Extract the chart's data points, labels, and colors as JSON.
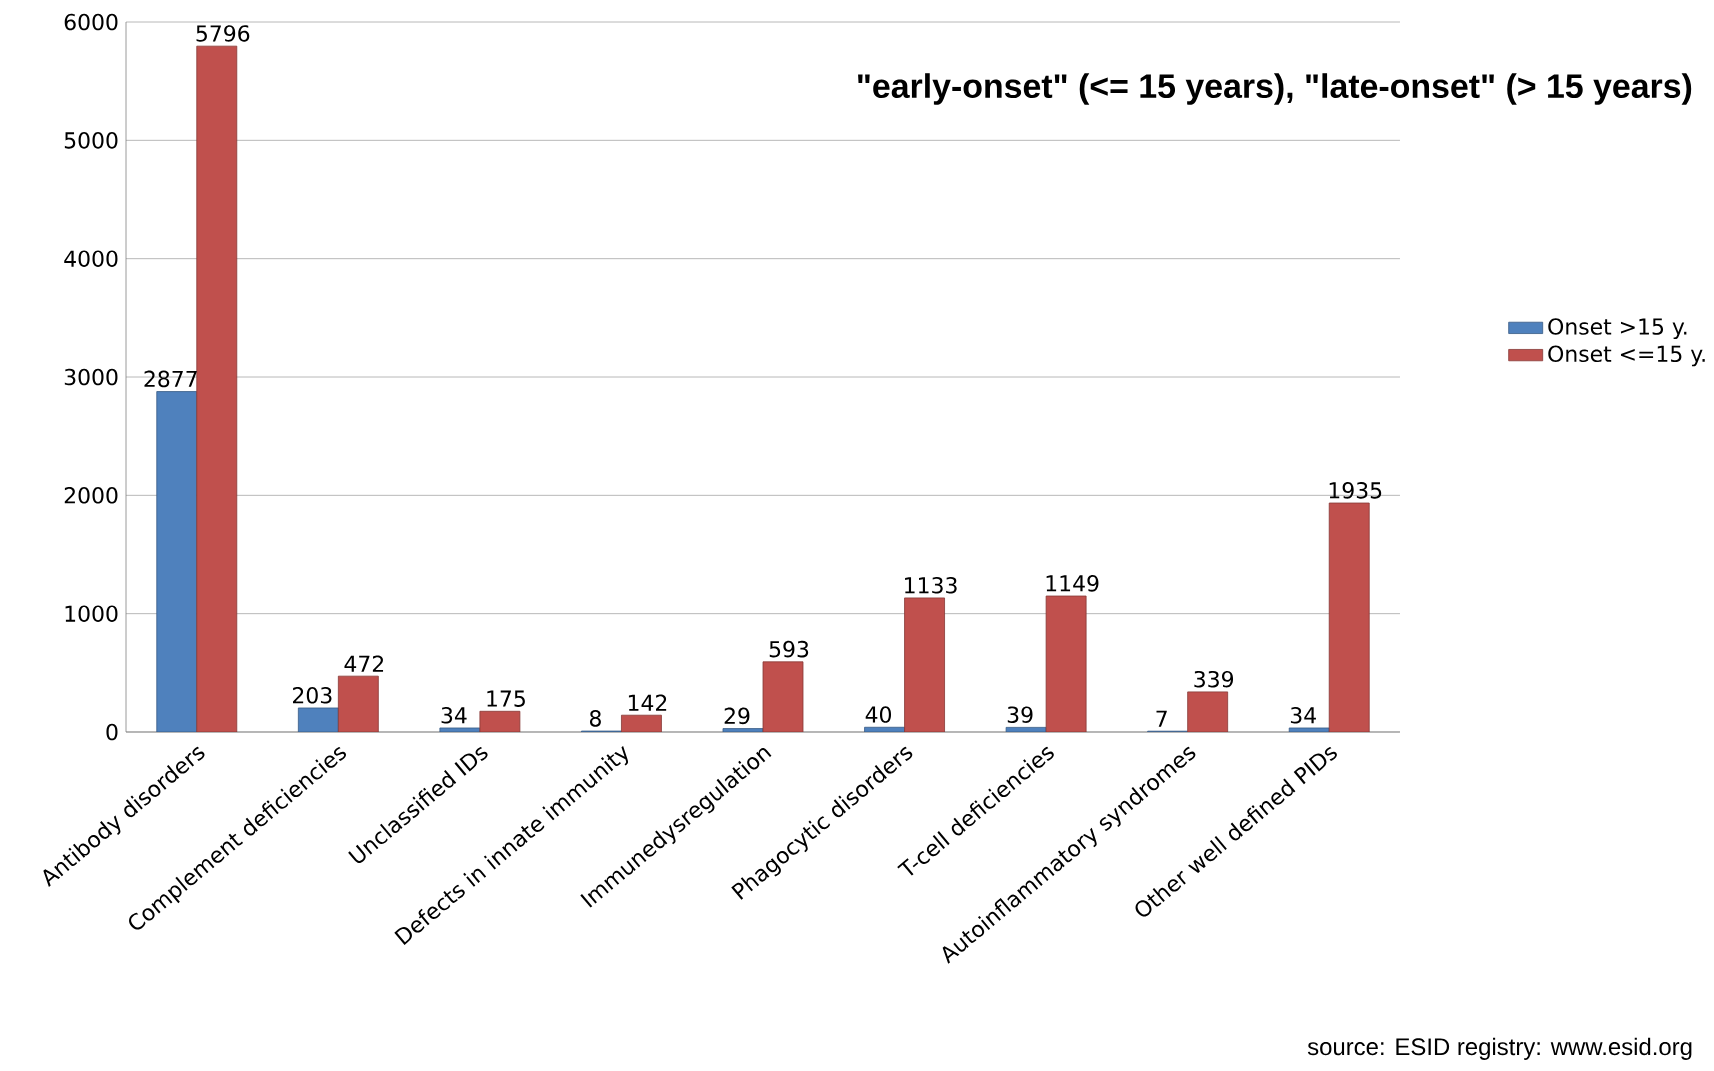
{
  "chart_data": {
    "type": "bar",
    "title": "\"early-onset\" (<= 15 years), \"late-onset\"  (> 15 years)",
    "categories": [
      "Antibody disorders",
      "Complement deficiencies",
      "Unclassified IDs",
      "Defects in innate immunity",
      "Immunedysregulation",
      "Phagocytic disorders",
      "T-cell deficiencies",
      "Autoinflammatory syndromes",
      "Other well defined PIDs"
    ],
    "series": [
      {
        "name": "Onset >15 y.",
        "color": "#4f81bd",
        "values": [
          2877,
          203,
          34,
          8,
          29,
          40,
          39,
          7,
          34
        ]
      },
      {
        "name": "Onset <=15 y.",
        "color": "#c0504d",
        "values": [
          5796,
          472,
          175,
          142,
          593,
          1133,
          1149,
          339,
          1935
        ]
      }
    ],
    "ylim": [
      0,
      6000
    ],
    "yticks": [
      0,
      1000,
      2000,
      3000,
      4000,
      5000,
      6000
    ],
    "grid": "y",
    "legend": "right",
    "data_labels": true,
    "annotations": [
      "source: ESID registry: www.esid.org"
    ]
  }
}
